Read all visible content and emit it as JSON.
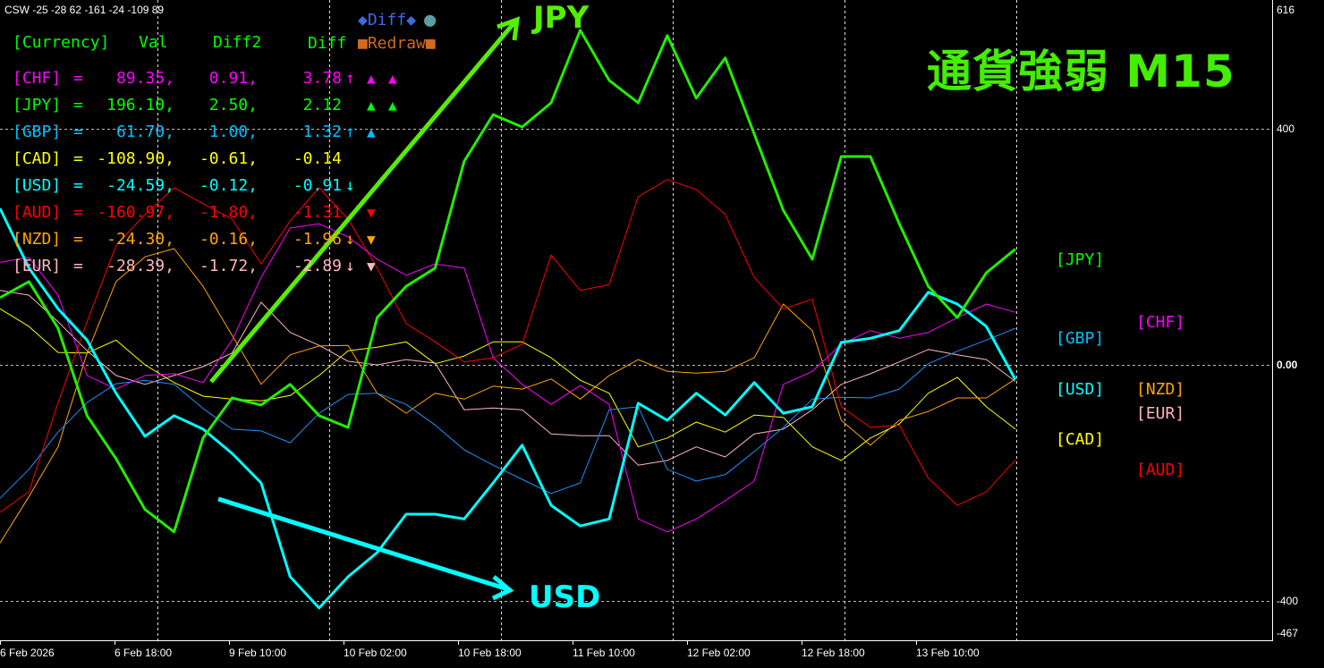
{
  "header_text": "CSW -25 -28 62 -161 -24 -109 89",
  "title": "通貨強弱  M15",
  "buttons": {
    "diff_toggle": {
      "label": "Diff",
      "marker": "◆",
      "circle": "●",
      "color": "#4169E1",
      "circle_color": "#5F9EA0"
    },
    "diff_overlay": {
      "label": "Diff",
      "color": "#00FF00"
    },
    "redraw": {
      "label": "Redraw",
      "marker": "■",
      "color": "#D2691E"
    }
  },
  "table": {
    "headers": {
      "currency": "[Currency]",
      "val": "Val",
      "diff2": "Diff2",
      "diff": "Diff"
    },
    "header_color": "#00FF00",
    "rows": [
      {
        "name": "[CHF]",
        "eq": "=",
        "val": "89.35",
        "diff2": "0.91",
        "diff": "3.78",
        "arrow": "↑",
        "tri1": "▲",
        "tri2": "▲",
        "color": "#FF00FF"
      },
      {
        "name": "[JPY]",
        "eq": "=",
        "val": "196.10",
        "diff2": "2.50",
        "diff": "2.12",
        "arrow": "",
        "tri1": "▲",
        "tri2": "▲",
        "color": "#00FF00"
      },
      {
        "name": "[GBP]",
        "eq": "=",
        "val": "61.70",
        "diff2": "1.00",
        "diff": "1.32",
        "arrow": "↑",
        "tri1": "▲",
        "tri2": "",
        "color": "#00BFFF"
      },
      {
        "name": "[CAD]",
        "eq": "=",
        "val": "-108.90",
        "diff2": "-0.61",
        "diff": "-0.14",
        "arrow": "",
        "tri1": "",
        "tri2": "",
        "color": "#FFFF00"
      },
      {
        "name": "[USD]",
        "eq": "=",
        "val": "-24.59",
        "diff2": "-0.12",
        "diff": "-0.91",
        "arrow": "↓",
        "tri1": "",
        "tri2": "",
        "color": "#00FFFF"
      },
      {
        "name": "[AUD]",
        "eq": "=",
        "val": "-160.97",
        "diff2": "-1.80",
        "diff": "-1.31",
        "arrow": "",
        "tri1": "▼",
        "tri2": "",
        "color": "#FF0000"
      },
      {
        "name": "[NZD]",
        "eq": "=",
        "val": "-24.30",
        "diff2": "-0.16",
        "diff": "-1.96",
        "arrow": "↓",
        "tri1": "▼",
        "tri2": "",
        "color": "#FFA500"
      },
      {
        "name": "[EUR]",
        "eq": "=",
        "val": "-28.39",
        "diff2": "-1.72",
        "diff": "-2.89",
        "arrow": "↓",
        "tri1": "▼",
        "tri2": "",
        "color": "#FFB6C1"
      }
    ]
  },
  "annotations": {
    "up_label": "JPY",
    "up_color": "#55EE00",
    "down_label": "USD",
    "down_color": "#00FFFF"
  },
  "right_labels": {
    "jpy": "[JPY]",
    "gbp": "[GBP]",
    "usd": "[USD]",
    "cad": "[CAD]",
    "chf": "[CHF]",
    "nzd": "[NZD]",
    "eur": "[EUR]",
    "aud": "[AUD]"
  },
  "chart_data": {
    "type": "line",
    "title": "",
    "xlabel": "",
    "ylabel": "",
    "ylim": [
      -467,
      616
    ],
    "grid": true,
    "y_ticks": [
      "616",
      "400",
      "0.00",
      "-400",
      "-467"
    ],
    "x_ticks": [
      "6 Feb 2026",
      "6 Feb 18:00",
      "9 Feb 10:00",
      "10 Feb 02:00",
      "10 Feb 18:00",
      "11 Feb 10:00",
      "12 Feb 02:00",
      "12 Feb 18:00",
      "13 Feb 10:00"
    ],
    "series": [
      {
        "name": "CHF",
        "color": "#FF00FF",
        "width": 1,
        "values": [
          174,
          182,
          118,
          -18,
          -41,
          -18,
          -15,
          -30,
          42,
          148,
          232,
          239,
          217,
          179,
          152,
          171,
          164,
          12,
          -33,
          -67,
          -35,
          -67,
          -261,
          -283,
          -261,
          -230,
          -197,
          -33,
          -11,
          35,
          58,
          45,
          55,
          80,
          103,
          89
        ]
      },
      {
        "name": "JPY",
        "color": "#22EE00",
        "width": 3,
        "values": [
          114,
          141,
          62,
          -86,
          -159,
          -245,
          -283,
          -124,
          -56,
          -68,
          -33,
          -86,
          -106,
          80,
          133,
          164,
          345,
          424,
          403,
          444,
          567,
          482,
          444,
          558,
          452,
          520,
          391,
          262,
          179,
          353,
          353,
          239,
          133,
          80,
          156,
          196
        ]
      },
      {
        "name": "GBP",
        "color": "#1E90FF",
        "width": 1,
        "values": [
          -226,
          -177,
          -114,
          -64,
          -32,
          -26,
          -33,
          -74,
          -109,
          -112,
          -132,
          -82,
          -50,
          -48,
          -67,
          -102,
          -144,
          -170,
          -194,
          -218,
          -200,
          -76,
          -71,
          -177,
          -197,
          -186,
          -147,
          -106,
          -58,
          -55,
          -56,
          -41,
          2,
          23,
          42,
          62
        ]
      },
      {
        "name": "CAD",
        "color": "#FFFF00",
        "width": 1,
        "values": [
          95,
          65,
          21,
          20,
          42,
          0,
          -30,
          -53,
          -58,
          -61,
          -52,
          -18,
          24,
          30,
          39,
          2,
          15,
          39,
          39,
          12,
          -26,
          -48,
          -139,
          -124,
          -97,
          -114,
          -85,
          -89,
          -139,
          -162,
          -124,
          -100,
          -48,
          -21,
          -71,
          -109
        ]
      },
      {
        "name": "USD",
        "color": "#00FFFF",
        "width": 3,
        "values": [
          265,
          164,
          95,
          42,
          -48,
          -121,
          -86,
          -109,
          -150,
          -200,
          -359,
          -412,
          -359,
          -318,
          -253,
          -253,
          -261,
          -200,
          -136,
          -238,
          -273,
          -261,
          -65,
          -94,
          -48,
          -85,
          -30,
          -82,
          -71,
          38,
          45,
          58,
          123,
          103,
          65,
          -25
        ]
      },
      {
        "name": "AUD",
        "color": "#FF0000",
        "width": 1,
        "values": [
          -250,
          -215,
          -64,
          73,
          202,
          255,
          300,
          273,
          247,
          171,
          244,
          300,
          247,
          164,
          70,
          39,
          5,
          12,
          35,
          186,
          126,
          136,
          285,
          314,
          297,
          255,
          148,
          95,
          111,
          -71,
          -106,
          -102,
          -192,
          -238,
          -215,
          -161
        ]
      },
      {
        "name": "NZD",
        "color": "#FFA500",
        "width": 1,
        "values": [
          -302,
          -223,
          -139,
          20,
          141,
          183,
          197,
          133,
          50,
          -33,
          17,
          32,
          33,
          -48,
          -82,
          -48,
          -58,
          -36,
          -41,
          -24,
          -58,
          -18,
          9,
          -11,
          -14,
          -11,
          12,
          103,
          58,
          -94,
          -136,
          -94,
          -79,
          -56,
          -56,
          -24
        ]
      },
      {
        "name": "EUR",
        "color": "#FFB6C1",
        "width": 1,
        "values": [
          126,
          118,
          73,
          24,
          -18,
          -33,
          -18,
          -3,
          20,
          106,
          55,
          33,
          6,
          0,
          9,
          3,
          -76,
          -73,
          -76,
          -117,
          -120,
          -120,
          -170,
          -162,
          -139,
          -156,
          -117,
          -109,
          -76,
          -33,
          -15,
          5,
          26,
          17,
          9,
          -28
        ]
      }
    ]
  }
}
